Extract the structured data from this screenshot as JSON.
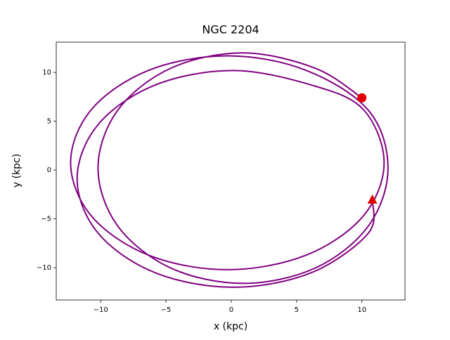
{
  "chart_data": {
    "type": "line",
    "title": "NGC 2204",
    "xlabel": "x (kpc)",
    "ylabel": "y (kpc)",
    "xlim": [
      -13.4,
      13.3
    ],
    "ylim": [
      -13.3,
      13.1
    ],
    "xticks": [
      {
        "value": -10,
        "label": "−10"
      },
      {
        "value": -5,
        "label": "−5"
      },
      0,
      5,
      10
    ],
    "yticks": [
      {
        "value": -10,
        "label": "−10"
      },
      {
        "value": -5,
        "label": "−5"
      },
      0,
      5,
      10
    ],
    "series": [
      {
        "color": "#800080",
        "x": [
          10,
          6.45,
          0.9,
          -4.65,
          -8.71,
          -10.2,
          -8.71,
          -4.65,
          0.9,
          6.45,
          10.51,
          12.0,
          10.51,
          5.7,
          -0.3,
          -6.3,
          -10.69,
          -12.3,
          -10.69,
          -6.3,
          -0.3,
          5.7,
          10.09,
          11.7,
          10.09,
          6.13,
          0.15,
          -5.83,
          -10.2,
          -11.8,
          -10.2,
          -5.83,
          0.15,
          6.13,
          10.5,
          10.8
        ],
        "y": [
          7.4,
          10.42,
          12.0,
          10.42,
          6.1,
          0.2,
          -5.7,
          -10.02,
          -11.6,
          -10.02,
          -5.7,
          0.2,
          6.1,
          10.23,
          11.7,
          10.23,
          6.23,
          0.75,
          -4.73,
          -8.73,
          -10.2,
          -8.73,
          -4.73,
          0.75,
          6.23,
          8.71,
          10.2,
          8.71,
          4.65,
          -0.9,
          -6.45,
          -10.51,
          -12.0,
          -10.51,
          -6.45,
          -3.0
        ]
      }
    ],
    "markers": [
      {
        "shape": "circle",
        "color": "#e00000",
        "x": 10,
        "y": 7.4
      },
      {
        "shape": "triangle",
        "color": "#e00000",
        "x": 10.8,
        "y": -3.0
      }
    ]
  }
}
